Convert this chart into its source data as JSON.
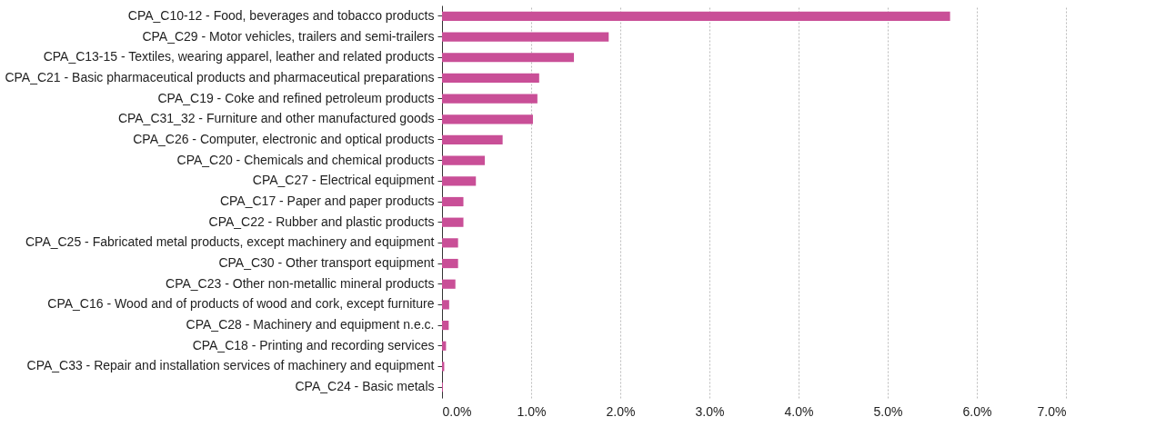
{
  "chart_data": {
    "type": "bar",
    "orientation": "horizontal",
    "color": "#c94f97",
    "grid": "x",
    "categories": [
      "CPA_C10-12 - Food, beverages and tobacco products",
      "CPA_C29 - Motor vehicles, trailers and semi-trailers",
      "CPA_C13-15 - Textiles, wearing apparel, leather and related products",
      "CPA_C21 - Basic pharmaceutical products and pharmaceutical preparations",
      "CPA_C19 - Coke and refined petroleum products",
      "CPA_C31_32 - Furniture and other manufactured goods",
      "CPA_C26 - Computer, electronic and optical products",
      "CPA_C20 - Chemicals and chemical products",
      "CPA_C27 - Electrical equipment",
      "CPA_C17 - Paper and paper products",
      "CPA_C22 - Rubber and plastic products",
      "CPA_C25 - Fabricated metal products, except machinery and equipment",
      "CPA_C30 - Other transport equipment",
      "CPA_C23 - Other non-metallic mineral products",
      "CPA_C16 - Wood and of products of wood and cork, except furniture",
      "CPA_C28 - Machinery and equipment n.e.c.",
      "CPA_C18 - Printing and recording services",
      "CPA_C33 - Repair and installation services of machinery and equipment",
      "CPA_C24 - Basic metals"
    ],
    "values": [
      5.7,
      1.87,
      1.48,
      1.09,
      1.07,
      1.02,
      0.68,
      0.48,
      0.38,
      0.24,
      0.24,
      0.18,
      0.18,
      0.15,
      0.08,
      0.075,
      0.045,
      0.025,
      0.01
    ],
    "xlim": [
      0,
      7
    ],
    "xticks": [
      {
        "value": 0,
        "label": "0.0%"
      },
      {
        "value": 1,
        "label": "1.0%"
      },
      {
        "value": 2,
        "label": "2.0%"
      },
      {
        "value": 3,
        "label": "3.0%"
      },
      {
        "value": 4,
        "label": "4.0%"
      },
      {
        "value": 5,
        "label": "5.0%"
      },
      {
        "value": 6,
        "label": "6.0%"
      },
      {
        "value": 7,
        "label": "7.0%"
      }
    ]
  }
}
